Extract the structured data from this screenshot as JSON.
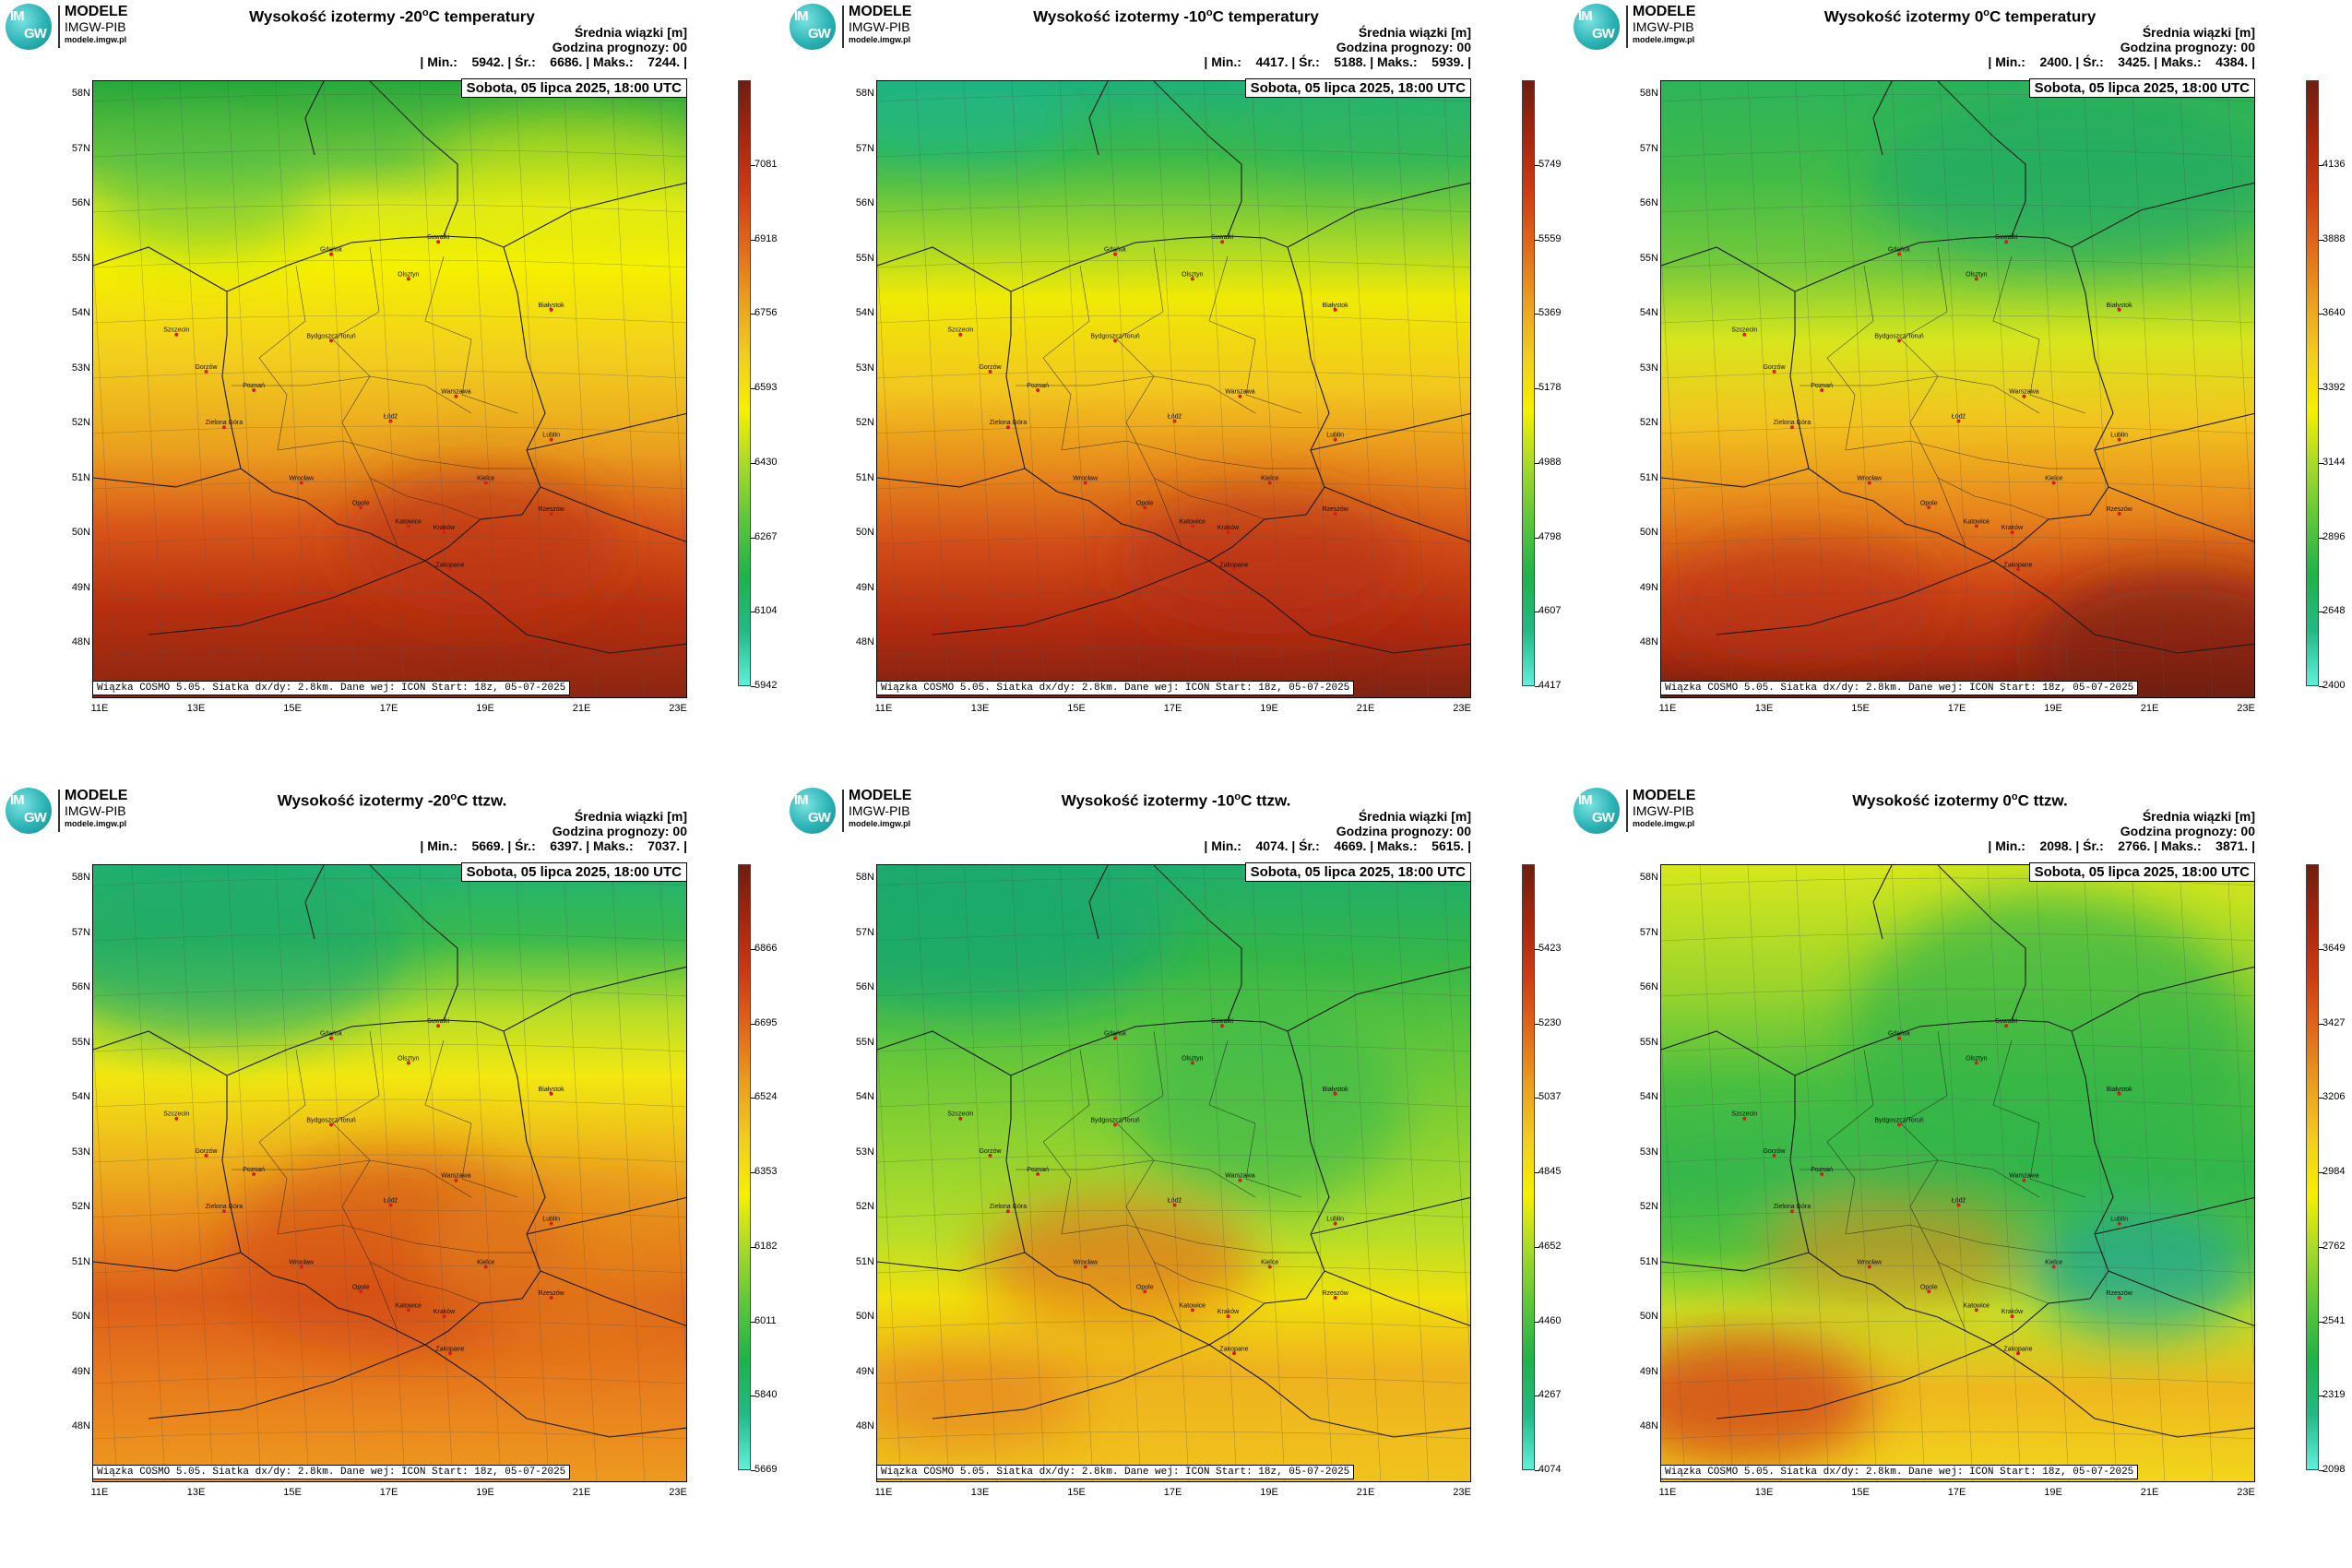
{
  "logo": {
    "line1": "MODELE",
    "line2": "IMGW-PIB",
    "line3": "modele.imgw.pl",
    "mark_im": "IM",
    "mark_gw": "GW"
  },
  "common": {
    "info_line1": "Średnia wiązki [m]",
    "info_line2": "Godzina prognozy: 00",
    "date": "Sobota, 05 lipca 2025, 18:00 UTC",
    "footer": "Wiązka COSMO 5.05. Siatka dx/dy: 2.8km. Dane wej: ICON Start: 18z, 05-07-2025",
    "lat_labels": [
      "58N",
      "57N",
      "56N",
      "55N",
      "54N",
      "53N",
      "52N",
      "51N",
      "50N",
      "49N",
      "48N"
    ],
    "lon_labels": [
      "11E",
      "13E",
      "15E",
      "17E",
      "19E",
      "21E",
      "23E"
    ],
    "cities": [
      "Gdańsk",
      "Suwałki",
      "Olsztyn",
      "Białystok",
      "Szczecin",
      "Bydgoszcz/Toruń",
      "Gorzów",
      "Poznań",
      "Warszawa",
      "Zielona Góra",
      "Łódź",
      "Lublin",
      "Wrocław",
      "Kielce",
      "Opole",
      "Katowice",
      "Kraków",
      "Rzeszów",
      "Zakopane"
    ]
  },
  "panels": [
    {
      "title_pre": "Wysokość izotermy -20",
      "title_sup": "o",
      "title_post": "C temperatury",
      "stats": "| Min.:    5942. | Śr.:    6686. | Maks.:    7244. |",
      "colorbar_ticks": [
        "7081",
        "6918",
        "6756",
        "6593",
        "6430",
        "6267",
        "6104",
        "5942"
      ],
      "scheme": "temp20"
    },
    {
      "title_pre": "Wysokość izotermy -10",
      "title_sup": "o",
      "title_post": "C temperatury",
      "stats": "| Min.:    4417. | Śr.:    5188. | Maks.:    5939. |",
      "colorbar_ticks": [
        "5749",
        "5559",
        "5369",
        "5178",
        "4988",
        "4798",
        "4607",
        "4417"
      ],
      "scheme": "temp10"
    },
    {
      "title_pre": "Wysokość izotermy 0",
      "title_sup": "o",
      "title_post": "C temperatury",
      "stats": "| Min.:    2400. | Śr.:    3425. | Maks.:    4384. |",
      "colorbar_ticks": [
        "4136",
        "3888",
        "3640",
        "3392",
        "3144",
        "2896",
        "2648",
        "2400"
      ],
      "scheme": "temp0"
    },
    {
      "title_pre": "Wysokość izotermy -20",
      "title_sup": "o",
      "title_post": "C ttzw.",
      "stats": "| Min.:    5669. | Śr.:    6397. | Maks.:    7037. |",
      "colorbar_ticks": [
        "6866",
        "6695",
        "6524",
        "6353",
        "6182",
        "6011",
        "5840",
        "5669"
      ],
      "scheme": "tw20"
    },
    {
      "title_pre": "Wysokość izotermy -10",
      "title_sup": "o",
      "title_post": "C ttzw.",
      "stats": "| Min.:    4074. | Śr.:    4669. | Maks.:    5615. |",
      "colorbar_ticks": [
        "5423",
        "5230",
        "5037",
        "4845",
        "4652",
        "4460",
        "4267",
        "4074"
      ],
      "scheme": "tw10"
    },
    {
      "title_pre": "Wysokość izotermy 0",
      "title_sup": "o",
      "title_post": "C ttzw.",
      "stats": "| Min.:    2098. | Śr.:    2766. | Maks.:    3871. |",
      "colorbar_ticks": [
        "3649",
        "3427",
        "3206",
        "2984",
        "2762",
        "2541",
        "2319",
        "2098"
      ],
      "scheme": "tw0"
    }
  ],
  "colors": {
    "colorbar_stops": [
      "#5ff0d8",
      "#23b986",
      "#20b24a",
      "#5cc63a",
      "#a6d92a",
      "#f5f000",
      "#f2cd1e",
      "#ea9f1e",
      "#e0691b",
      "#cc3b14",
      "#a5260f",
      "#6e1e10"
    ],
    "border": "#1a1a1a",
    "city_dot": "#d02020"
  }
}
